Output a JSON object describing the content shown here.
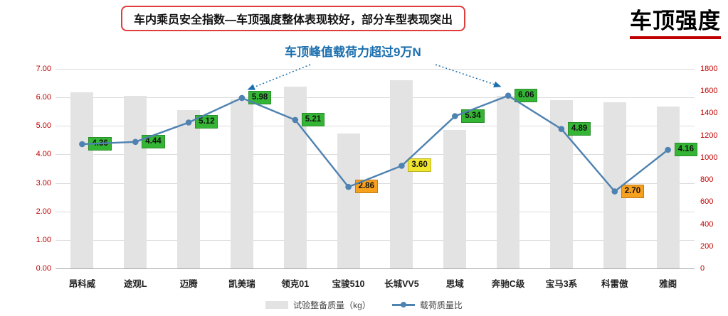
{
  "page": {
    "header_note": "车内乘员安全指数—车顶强度整体表现较好，部分车型表现突出",
    "page_title": "车顶强度",
    "annotation": "车顶峰值载荷力超过9万N"
  },
  "colors": {
    "bar": "#e3e3e3",
    "line": "#4e82b0",
    "axis_label": "#c00000",
    "annotation_blue": "#1b6fae",
    "note_border_red": "#e03c3c",
    "title_underline_red": "#c00000",
    "label_green": "#35b535",
    "label_orange": "#f6a01f",
    "label_yellow": "#f0e62f"
  },
  "chart_data": {
    "type": "combo-bar-line",
    "title": "车顶强度",
    "annotation": "车顶峰值载荷力超过9万N",
    "categories": [
      "昂科威",
      "途观L",
      "迈腾",
      "凯美瑞",
      "领克01",
      "宝骏510",
      "长城VV5",
      "思域",
      "奔驰C级",
      "宝马3系",
      "科雷傲",
      "雅阁"
    ],
    "series": [
      {
        "name": "试验整备质量（kg）",
        "type": "bar",
        "axis": "right",
        "color": "#e3e3e3",
        "values": [
          1590,
          1555,
          1430,
          1525,
          1640,
          1215,
          1695,
          1250,
          1560,
          1520,
          1500,
          1460
        ]
      },
      {
        "name": "载荷质量比",
        "type": "line",
        "axis": "left",
        "color": "#4e82b0",
        "values": [
          4.36,
          4.44,
          5.12,
          5.98,
          5.21,
          2.86,
          3.6,
          5.34,
          6.06,
          4.89,
          2.7,
          4.16
        ],
        "label_bg": [
          "#35b535",
          "#35b535",
          "#35b535",
          "#35b535",
          "#35b535",
          "#f6a01f",
          "#f0e62f",
          "#35b535",
          "#35b535",
          "#35b535",
          "#f6a01f",
          "#35b535"
        ],
        "annotated_points": [
          3,
          8
        ]
      }
    ],
    "left_axis": {
      "min": 0,
      "max": 7,
      "step": 1,
      "labels": [
        "7.00",
        "6.00",
        "5.00",
        "4.00",
        "3.00",
        "2.00",
        "1.00",
        "0.00"
      ]
    },
    "right_axis": {
      "min": 0,
      "max": 1800,
      "step": 200,
      "labels": [
        "1800",
        "1600",
        "1400",
        "1200",
        "1000",
        "800",
        "600",
        "400",
        "200",
        "0"
      ]
    },
    "grid": true,
    "legend_position": "bottom"
  }
}
